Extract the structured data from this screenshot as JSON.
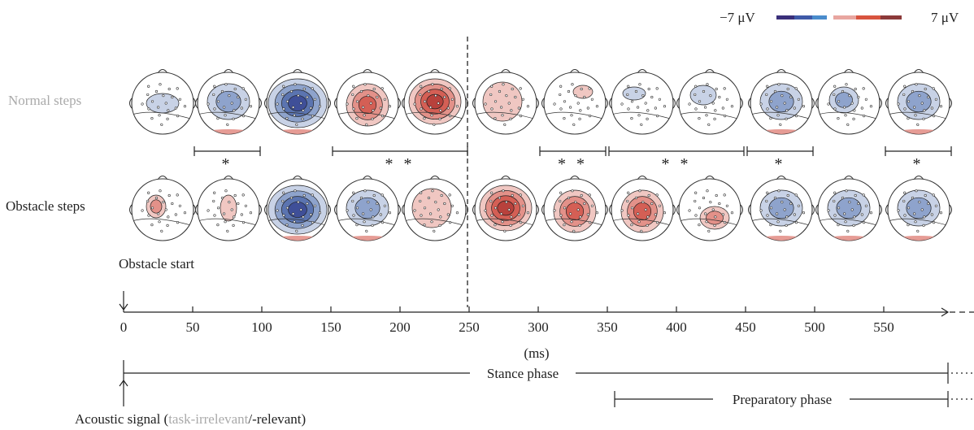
{
  "legend": {
    "min_label": "−7 μV",
    "max_label": "7 μV",
    "colors": [
      "#3a2f7a",
      "#3f5aa8",
      "#4a8ccc",
      "#e8a6a0",
      "#d8543f",
      "#8c3a3a"
    ]
  },
  "rows": {
    "normal_label": "Normal steps",
    "obstacle_label": "Obstacle steps"
  },
  "obstacle_start_label": "Obstacle start",
  "axis": {
    "ticks": [
      "0",
      "50",
      "100",
      "150",
      "200",
      "250",
      "300",
      "350",
      "400",
      "450",
      "500",
      "550"
    ],
    "unit_label": "(ms)"
  },
  "significance": [
    {
      "stars": "*",
      "from_ms": 50,
      "to_ms": 100
    },
    {
      "stars": "**",
      "from_ms": 150,
      "to_ms": 250
    },
    {
      "stars": "**",
      "from_ms": 300,
      "to_ms": 350
    },
    {
      "stars": "**",
      "from_ms": 350,
      "to_ms": 450
    },
    {
      "stars": "*",
      "from_ms": 450,
      "to_ms": 500
    },
    {
      "stars": "*",
      "from_ms": 550,
      "to_ms": 600
    }
  ],
  "phases": {
    "stance_label": "Stance phase",
    "preparatory_label": "Preparatory phase"
  },
  "acoustic": {
    "prefix": "Acoustic signal (",
    "irrelevant": "task-irrelevant",
    "suffix": "/-relevant)"
  },
  "maps": {
    "normal": [
      "weak-blue",
      "blue",
      "strong-blue",
      "red",
      "strong-red",
      "pale-red",
      "mixed",
      "mixed-pale",
      "mixed-blue",
      "blue",
      "blue-small",
      "blue"
    ],
    "obstacle": [
      "red-small",
      "red-small-pale",
      "strong-blue",
      "blue",
      "pale-red",
      "strong-red",
      "red",
      "red",
      "red-blue",
      "blue",
      "blue",
      "blue"
    ]
  }
}
